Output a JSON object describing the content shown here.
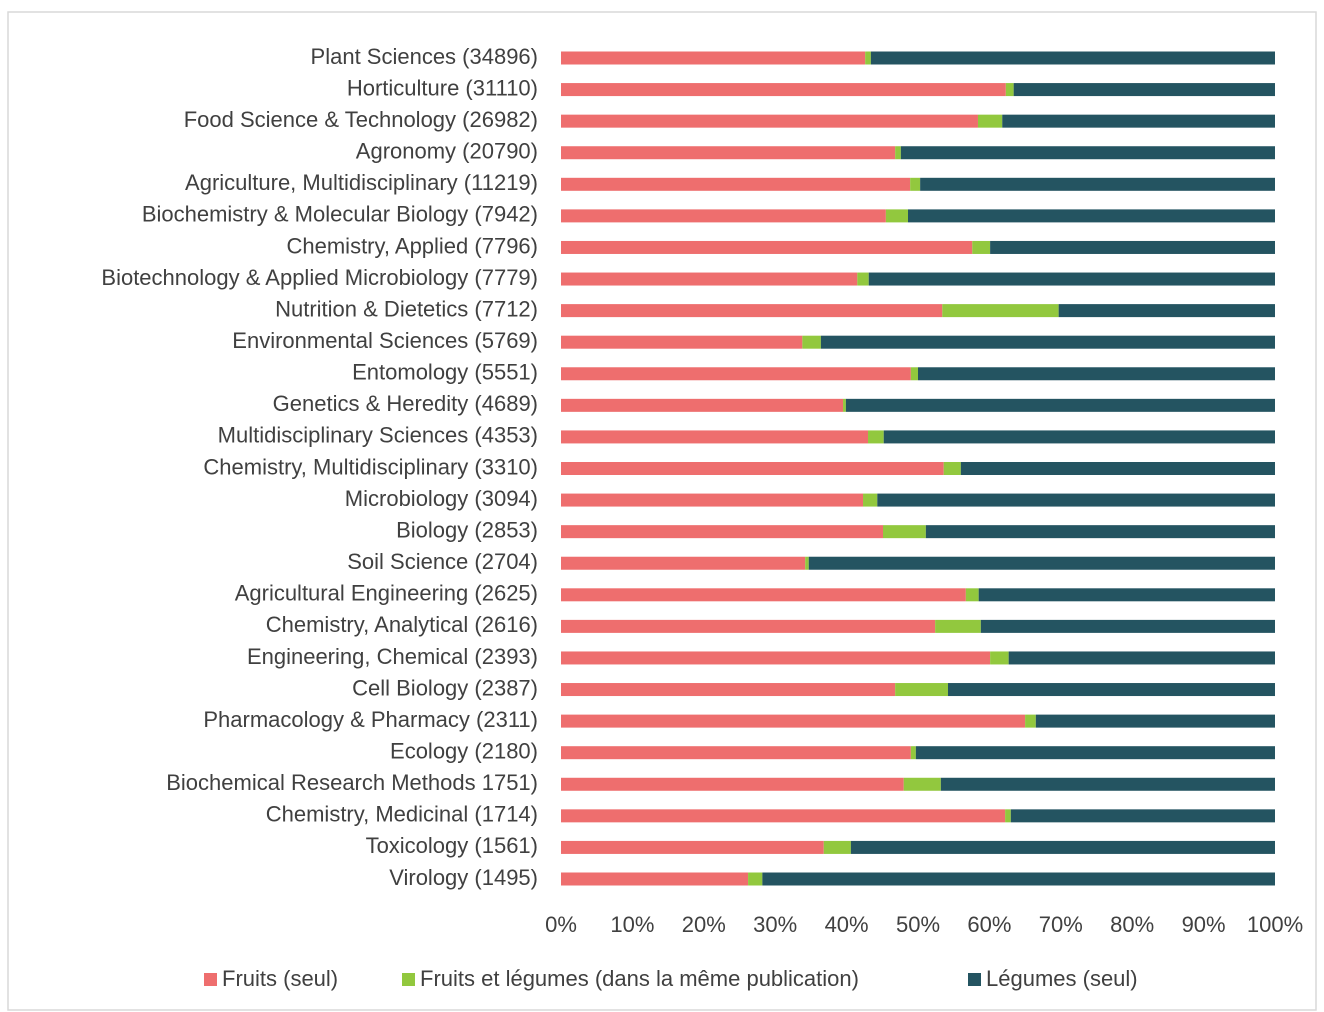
{
  "chart_data": {
    "type": "stacked_bar_horizontal",
    "categories": [
      "Plant Sciences (34896)",
      "Horticulture (31110)",
      "Food Science & Technology (26982)",
      "Agronomy (20790)",
      "Agriculture, Multidisciplinary (11219)",
      "Biochemistry & Molecular Biology (7942)",
      "Chemistry, Applied (7796)",
      "Biotechnology & Applied Microbiology (7779)",
      "Nutrition & Dietetics (7712)",
      "Environmental Sciences (5769)",
      "Entomology (5551)",
      "Genetics & Heredity (4689)",
      "Multidisciplinary Sciences (4353)",
      "Chemistry, Multidisciplinary (3310)",
      "Microbiology (3094)",
      "Biology (2853)",
      "Soil Science (2704)",
      "Agricultural Engineering (2625)",
      "Chemistry, Analytical (2616)",
      "Engineering, Chemical (2393)",
      "Cell Biology (2387)",
      "Pharmacology & Pharmacy (2311)",
      "Ecology (2180)",
      "Biochemical Research Methods 1751)",
      "Chemistry, Medicinal (1714)",
      "Toxicology (1561)",
      "Virology (1495)"
    ],
    "series": [
      {
        "name": "Fruits (seul)",
        "color": "#ee6e6e",
        "values": [
          42.6,
          62.3,
          58.4,
          46.8,
          48.9,
          45.5,
          57.6,
          41.5,
          53.4,
          33.8,
          49.0,
          39.5,
          43.0,
          53.6,
          42.3,
          45.1,
          34.2,
          56.7,
          52.4,
          60.1,
          46.8,
          65.0,
          49.0,
          48.0,
          62.2,
          36.8,
          26.2
        ]
      },
      {
        "name": "Fruits et légumes (dans la même publication)",
        "color": "#92c83e",
        "values": [
          0.8,
          1.1,
          3.4,
          0.8,
          1.4,
          3.1,
          2.5,
          1.6,
          16.3,
          2.6,
          1.0,
          0.4,
          2.2,
          2.4,
          2.0,
          6.0,
          0.5,
          1.8,
          6.4,
          2.6,
          7.4,
          1.5,
          0.7,
          5.2,
          0.8,
          3.8,
          2.0
        ]
      },
      {
        "name": "Légumes (seul)",
        "color": "#245461",
        "values": [
          56.6,
          36.6,
          38.2,
          52.4,
          49.7,
          51.4,
          39.9,
          56.9,
          30.3,
          63.6,
          50.0,
          60.1,
          54.8,
          44.0,
          55.7,
          48.9,
          65.3,
          41.5,
          41.2,
          37.3,
          45.8,
          33.5,
          50.3,
          46.8,
          37.0,
          59.4,
          71.8
        ]
      }
    ],
    "xlim": [
      0,
      100
    ],
    "xticks": [
      {
        "value": 0,
        "label": "0%"
      },
      {
        "value": 10,
        "label": "10%"
      },
      {
        "value": 20,
        "label": "20%"
      },
      {
        "value": 30,
        "label": "30%"
      },
      {
        "value": 40,
        "label": "40%"
      },
      {
        "value": 50,
        "label": "50%"
      },
      {
        "value": 60,
        "label": "60%"
      },
      {
        "value": 70,
        "label": "70%"
      },
      {
        "value": 80,
        "label": "80%"
      },
      {
        "value": 90,
        "label": "90%"
      },
      {
        "value": 100,
        "label": "100%"
      }
    ],
    "legend": "bottom"
  }
}
